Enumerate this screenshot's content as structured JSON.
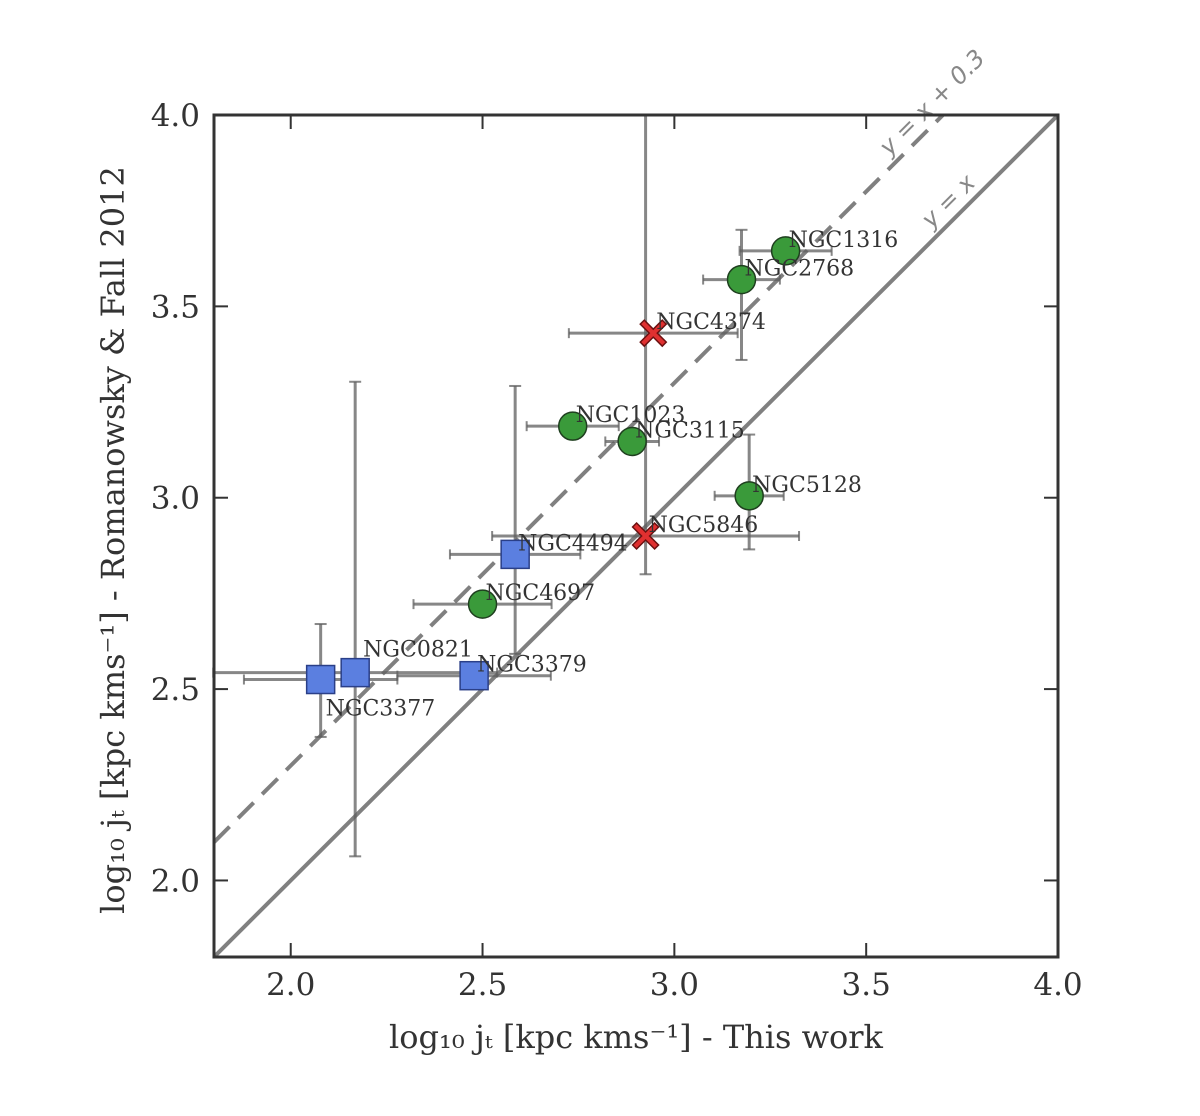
{
  "chart_data": {
    "type": "scatter",
    "xlabel": "log₁₀ jₜ [kpc kms⁻¹] - This work",
    "ylabel": "log₁₀ jₜ [kpc kms⁻¹] - Romanowsky & Fall 2012",
    "xlim": [
      1.8,
      4.0
    ],
    "ylim": [
      1.8,
      4.0
    ],
    "xticks": [
      "2.0",
      "2.5",
      "3.0",
      "3.5",
      "4.0"
    ],
    "yticks": [
      "2.0",
      "2.5",
      "3.0",
      "3.5",
      "4.0"
    ],
    "grid": false,
    "reference_lines": [
      {
        "name": "identity",
        "label": "y = x",
        "offset": 0.0,
        "style": "solid",
        "color": "#808080"
      },
      {
        "name": "offset",
        "label": "y = x + 0.3",
        "offset": 0.3,
        "style": "dashed",
        "color": "#808080"
      }
    ],
    "series": [
      {
        "name": "green-circles",
        "marker": "circle",
        "color": "#3a9a3a",
        "points": [
          {
            "label": "NGC1316",
            "x": 3.29,
            "y": 3.645,
            "xerr": [
              0.12,
              0.12
            ],
            "yerr": [
              0.0,
              0.0
            ]
          },
          {
            "label": "NGC2768",
            "x": 3.175,
            "y": 3.57,
            "xerr": [
              0.1,
              0.1
            ],
            "yerr": [
              0.21,
              0.13
            ]
          },
          {
            "label": "NGC1023",
            "x": 2.735,
            "y": 3.187,
            "xerr": [
              0.12,
              0.12
            ],
            "yerr": [
              0.0,
              0.0
            ]
          },
          {
            "label": "NGC3115",
            "x": 2.89,
            "y": 3.147,
            "xerr": [
              0.07,
              0.07
            ],
            "yerr": [
              0.0,
              0.0
            ]
          },
          {
            "label": "NGC5128",
            "x": 3.195,
            "y": 3.005,
            "xerr": [
              0.09,
              0.09
            ],
            "yerr": [
              0.14,
              0.16
            ]
          },
          {
            "label": "NGC4697",
            "x": 2.5,
            "y": 2.722,
            "xerr": [
              0.18,
              0.18
            ],
            "yerr": [
              0.0,
              0.0
            ]
          }
        ]
      },
      {
        "name": "red-crosses",
        "marker": "x",
        "color": "#e03030",
        "points": [
          {
            "label": "NGC4374",
            "x": 2.945,
            "y": 3.43,
            "xerr": [
              0.22,
              0.22
            ],
            "yerr": [
              0.0,
              0.0
            ]
          },
          {
            "label": "NGC5846",
            "x": 2.925,
            "y": 2.9,
            "xerr": [
              0.4,
              0.4
            ],
            "yerr": [
              0.1,
              1.1
            ]
          }
        ]
      },
      {
        "name": "blue-squares",
        "marker": "square",
        "color": "#5b7fe0",
        "points": [
          {
            "label": "NGC4494",
            "x": 2.585,
            "y": 2.852,
            "xerr": [
              0.17,
              0.17
            ],
            "yerr": [
              0.26,
              0.44
            ]
          },
          {
            "label": "NGC0821",
            "x": 2.168,
            "y": 2.543,
            "xerr": [
              0.37,
              0.37
            ],
            "yerr": [
              0.48,
              0.76
            ]
          },
          {
            "label": "NGC3377",
            "x": 2.078,
            "y": 2.525,
            "xerr": [
              0.2,
              0.2
            ],
            "yerr": [
              0.15,
              0.145
            ]
          },
          {
            "label": "NGC3379",
            "x": 2.478,
            "y": 2.535,
            "xerr": [
              0.2,
              0.2
            ],
            "yerr": [
              0.0,
              0.0
            ]
          }
        ]
      }
    ]
  }
}
